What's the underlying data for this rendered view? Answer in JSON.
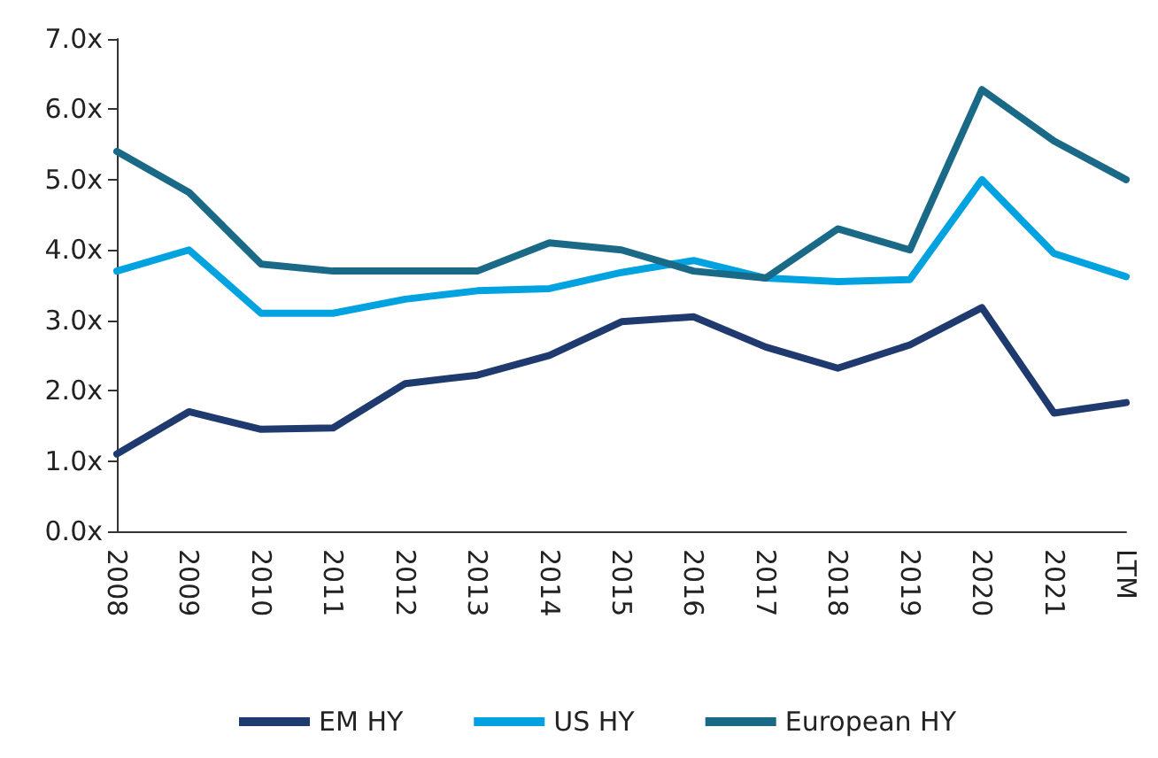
{
  "chart_data": {
    "type": "line",
    "categories": [
      "2008",
      "2009",
      "2010",
      "2011",
      "2012",
      "2013",
      "2014",
      "2015",
      "2016",
      "2017",
      "2018",
      "2019",
      "2020",
      "2021",
      "LTM"
    ],
    "series": [
      {
        "name": "EM HY",
        "color": "#1f3a6e",
        "values": [
          1.1,
          1.7,
          1.45,
          1.47,
          2.1,
          2.22,
          2.5,
          2.98,
          3.05,
          2.62,
          2.32,
          2.65,
          3.18,
          1.68,
          1.83
        ]
      },
      {
        "name": "US HY",
        "color": "#00a3e0",
        "values": [
          3.7,
          4.0,
          3.1,
          3.1,
          3.3,
          3.42,
          3.45,
          3.68,
          3.85,
          3.6,
          3.55,
          3.58,
          5.0,
          3.95,
          3.62
        ]
      },
      {
        "name": "European HY",
        "color": "#1a6a87",
        "values": [
          5.4,
          4.82,
          3.8,
          3.7,
          3.7,
          3.7,
          4.1,
          4.0,
          3.7,
          3.6,
          4.3,
          4.0,
          6.28,
          5.55,
          5.0
        ]
      }
    ],
    "ylim": [
      0,
      7
    ],
    "yticks": [
      {
        "value": 0,
        "label": "0.0x"
      },
      {
        "value": 1,
        "label": "1.0x"
      },
      {
        "value": 2,
        "label": "2.0x"
      },
      {
        "value": 3,
        "label": "3.0x"
      },
      {
        "value": 4,
        "label": "4.0x"
      },
      {
        "value": 5,
        "label": "5.0x"
      },
      {
        "value": 6,
        "label": "6.0x"
      },
      {
        "value": 7,
        "label": "7.0x"
      }
    ],
    "grid": false,
    "legend": "bottom",
    "marker": "none",
    "line_style": "solid"
  }
}
